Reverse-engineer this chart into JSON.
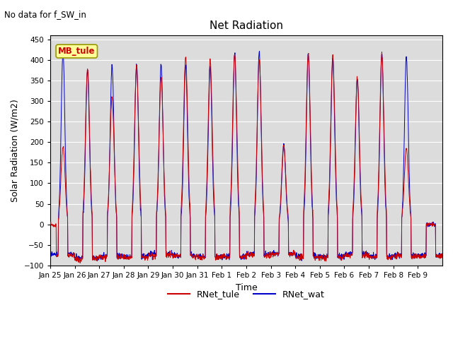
{
  "title": "Net Radiation",
  "top_left_text": "No data for f_SW_in",
  "ylabel": "Solar Radiation (W/m2)",
  "xlabel": "Time",
  "ylim": [
    -100,
    460
  ],
  "yticks": [
    -100,
    -50,
    0,
    50,
    100,
    150,
    200,
    250,
    300,
    350,
    400,
    450
  ],
  "bg_color": "#dcdcdc",
  "legend_label1": "RNet_tule",
  "legend_label2": "RNet_wat",
  "color1": "#cc0000",
  "color2": "#0000cc",
  "station_label": "MB_tule",
  "station_box_facecolor": "#ffff99",
  "station_box_edgecolor": "#999900",
  "tule_peaks": [
    190,
    378,
    310,
    386,
    355,
    408,
    400,
    415,
    400,
    192,
    415,
    410,
    358,
    413,
    185,
    0
  ],
  "wat_peaks": [
    420,
    375,
    388,
    390,
    388,
    388,
    383,
    415,
    418,
    192,
    415,
    404,
    355,
    415,
    408,
    0
  ],
  "night_tule": [
    -75,
    -85,
    -80,
    -80,
    -75,
    -78,
    -80,
    -80,
    -75,
    -72,
    -80,
    -80,
    -75,
    -80,
    -78,
    -78
  ],
  "night_wat": [
    -72,
    -82,
    -78,
    -78,
    -72,
    -75,
    -78,
    -78,
    -72,
    -70,
    -78,
    -78,
    -72,
    -78,
    -75,
    -75
  ],
  "samples_per_day": 96,
  "n_days": 16
}
